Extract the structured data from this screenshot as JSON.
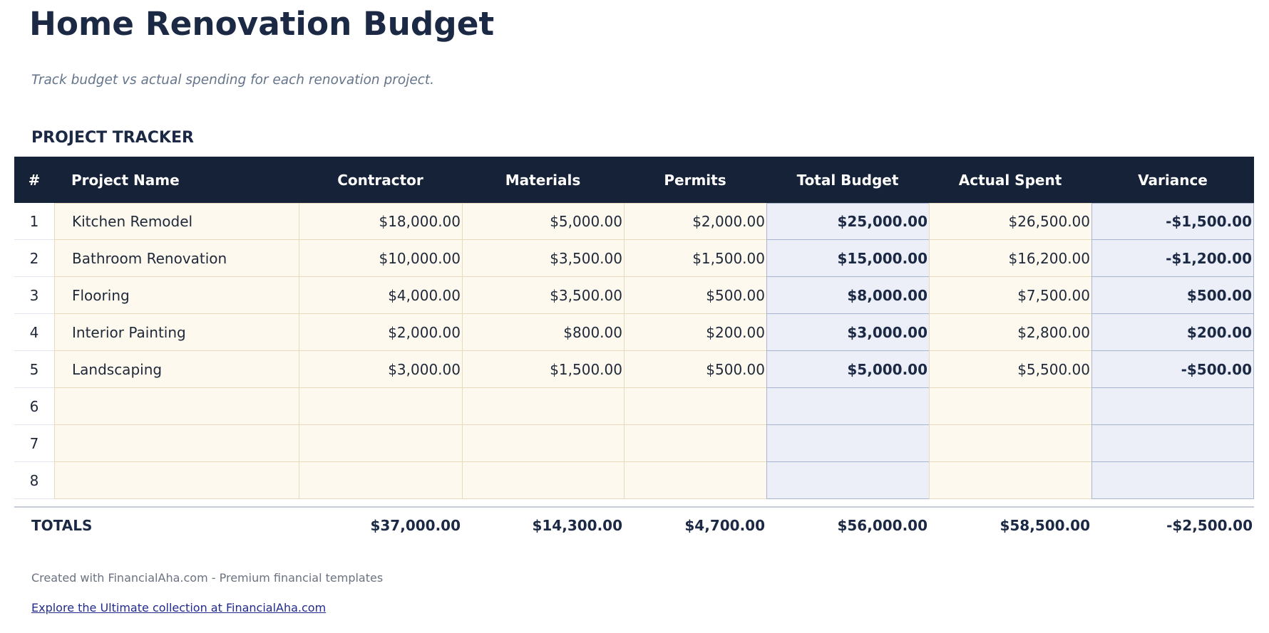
{
  "page": {
    "title": "Home Renovation Budget",
    "subtitle": "Track budget vs actual spending for each renovation project.",
    "section_title": "PROJECT TRACKER"
  },
  "table": {
    "columns": [
      "#",
      "Project Name",
      "Contractor",
      "Materials",
      "Permits",
      "Total Budget",
      "Actual Spent",
      "Variance"
    ],
    "rows": [
      {
        "num": "1",
        "name": "Kitchen Remodel",
        "contractor": "$18,000.00",
        "materials": "$5,000.00",
        "permits": "$2,000.00",
        "total_budget": "$25,000.00",
        "actual_spent": "$26,500.00",
        "variance": "-$1,500.00"
      },
      {
        "num": "2",
        "name": "Bathroom Renovation",
        "contractor": "$10,000.00",
        "materials": "$3,500.00",
        "permits": "$1,500.00",
        "total_budget": "$15,000.00",
        "actual_spent": "$16,200.00",
        "variance": "-$1,200.00"
      },
      {
        "num": "3",
        "name": "Flooring",
        "contractor": "$4,000.00",
        "materials": "$3,500.00",
        "permits": "$500.00",
        "total_budget": "$8,000.00",
        "actual_spent": "$7,500.00",
        "variance": "$500.00"
      },
      {
        "num": "4",
        "name": "Interior Painting",
        "contractor": "$2,000.00",
        "materials": "$800.00",
        "permits": "$200.00",
        "total_budget": "$3,000.00",
        "actual_spent": "$2,800.00",
        "variance": "$200.00"
      },
      {
        "num": "5",
        "name": "Landscaping",
        "contractor": "$3,000.00",
        "materials": "$1,500.00",
        "permits": "$500.00",
        "total_budget": "$5,000.00",
        "actual_spent": "$5,500.00",
        "variance": "-$500.00"
      },
      {
        "num": "6",
        "name": "",
        "contractor": "",
        "materials": "",
        "permits": "",
        "total_budget": "",
        "actual_spent": "",
        "variance": ""
      },
      {
        "num": "7",
        "name": "",
        "contractor": "",
        "materials": "",
        "permits": "",
        "total_budget": "",
        "actual_spent": "",
        "variance": ""
      },
      {
        "num": "8",
        "name": "",
        "contractor": "",
        "materials": "",
        "permits": "",
        "total_budget": "",
        "actual_spent": "",
        "variance": ""
      }
    ],
    "totals": {
      "label": "TOTALS",
      "contractor": "$37,000.00",
      "materials": "$14,300.00",
      "permits": "$4,700.00",
      "total_budget": "$56,000.00",
      "actual_spent": "$58,500.00",
      "variance": "-$2,500.00"
    }
  },
  "footer": {
    "credit": "Created with FinancialAha.com - Premium financial templates",
    "link": "Explore the Ultimate collection at FinancialAha.com"
  },
  "colors": {
    "header_bg": "#152238",
    "header_text": "#ffffff",
    "navy_text": "#1b2944",
    "cream_bg": "#fdf9ee",
    "cream_border": "#e6dbbd",
    "highlight_bg": "#eceff8",
    "highlight_border": "#a9b4ce",
    "row_divider": "#e3e6ee",
    "totals_divider": "#c6ccd8",
    "subtitle_text": "#64748b",
    "footer_text": "#6b7280",
    "link_text": "#212a8d"
  }
}
